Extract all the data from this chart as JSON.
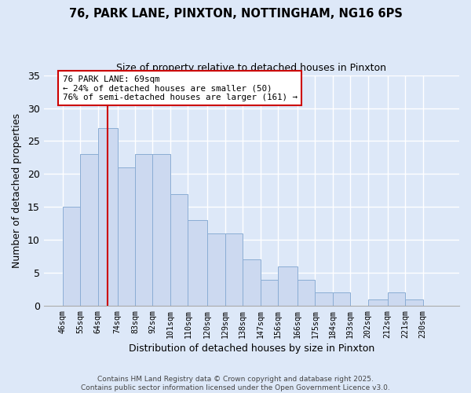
{
  "title1": "76, PARK LANE, PINXTON, NOTTINGHAM, NG16 6PS",
  "title2": "Size of property relative to detached houses in Pinxton",
  "xlabel": "Distribution of detached houses by size in Pinxton",
  "ylabel": "Number of detached properties",
  "bin_labels": [
    "46sqm",
    "55sqm",
    "64sqm",
    "74sqm",
    "83sqm",
    "92sqm",
    "101sqm",
    "110sqm",
    "120sqm",
    "129sqm",
    "138sqm",
    "147sqm",
    "156sqm",
    "166sqm",
    "175sqm",
    "184sqm",
    "193sqm",
    "202sqm",
    "212sqm",
    "221sqm",
    "230sqm"
  ],
  "bin_edges": [
    46,
    55,
    64,
    74,
    83,
    92,
    101,
    110,
    120,
    129,
    138,
    147,
    156,
    166,
    175,
    184,
    193,
    202,
    212,
    221,
    230
  ],
  "counts": [
    15,
    23,
    27,
    21,
    23,
    23,
    17,
    13,
    11,
    11,
    7,
    4,
    6,
    4,
    2,
    2,
    0,
    1,
    2,
    1,
    0
  ],
  "bar_color": "#ccd9f0",
  "bar_edge_color": "#8aadd4",
  "bg_color": "#dde8f8",
  "grid_color": "#ffffff",
  "vline_x": 69,
  "vline_color": "#cc0000",
  "annotation_text": "76 PARK LANE: 69sqm\n← 24% of detached houses are smaller (50)\n76% of semi-detached houses are larger (161) →",
  "annotation_box_color": "#ffffff",
  "annotation_box_edge": "#cc0000",
  "ylim": [
    0,
    35
  ],
  "yticks": [
    0,
    5,
    10,
    15,
    20,
    25,
    30,
    35
  ],
  "footnote1": "Contains HM Land Registry data © Crown copyright and database right 2025.",
  "footnote2": "Contains public sector information licensed under the Open Government Licence v3.0."
}
